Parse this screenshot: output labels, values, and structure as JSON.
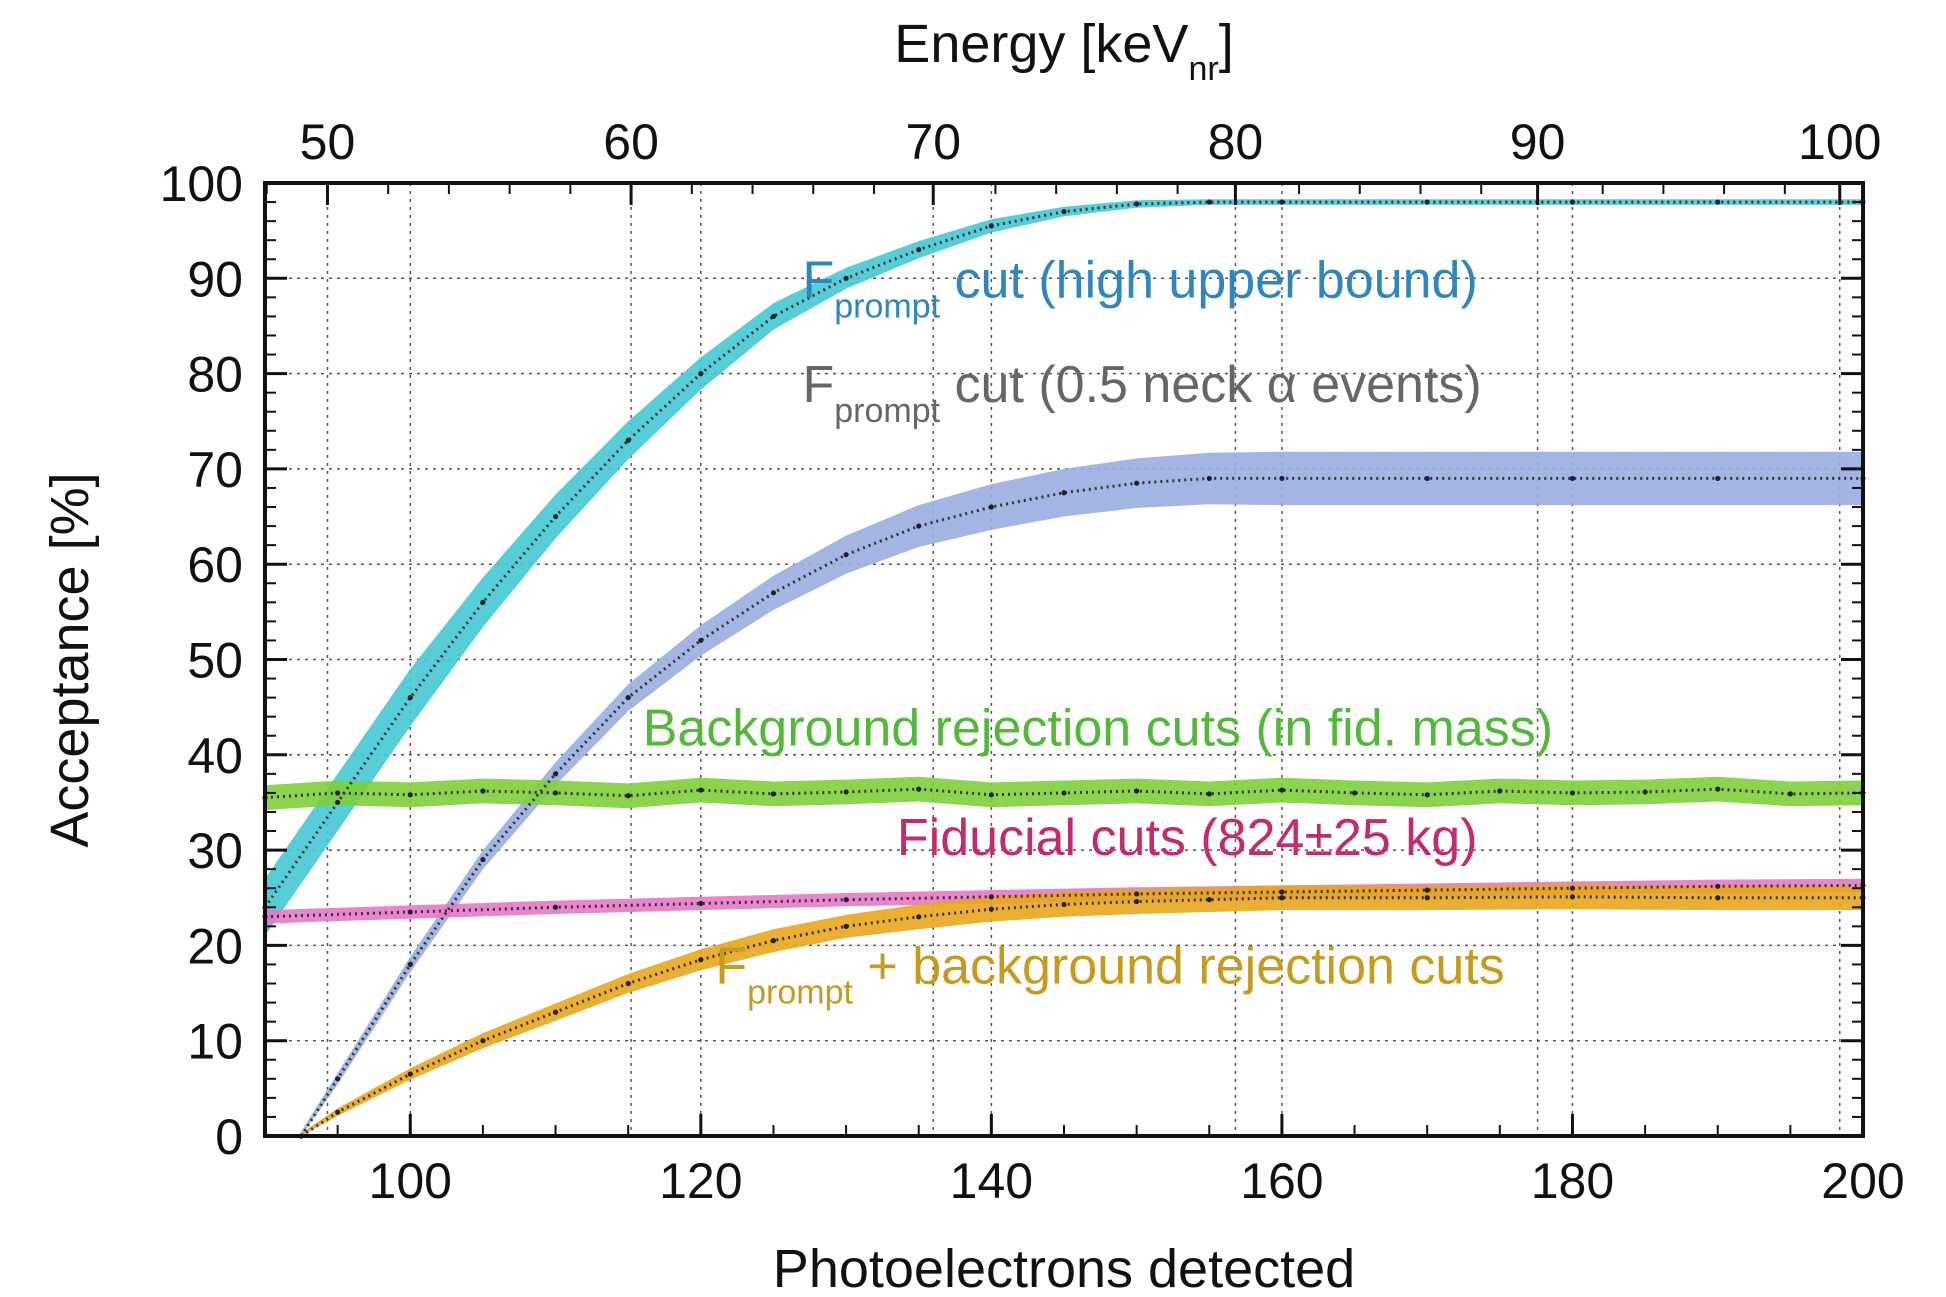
{
  "chart_data": {
    "type": "line",
    "xlabel": "Photoelectrons detected",
    "ylabel": "Acceptance [%]",
    "x2label_main": "Energy [keV",
    "x2label_sub": "nr",
    "x2label_end": "]",
    "xlim": [
      90,
      200
    ],
    "ylim": [
      0,
      100
    ],
    "x_ticks": [
      100,
      120,
      140,
      160,
      180,
      200
    ],
    "y_ticks": [
      0,
      10,
      20,
      30,
      40,
      50,
      60,
      70,
      80,
      90,
      100
    ],
    "x2_ticks": [
      {
        "label": "50",
        "at": 94.3
      },
      {
        "label": "60",
        "at": 115.2
      },
      {
        "label": "70",
        "at": 136.0
      },
      {
        "label": "80",
        "at": 156.8
      },
      {
        "label": "90",
        "at": 177.6
      },
      {
        "label": "100",
        "at": 198.4
      }
    ],
    "grid": true,
    "series": [
      {
        "color": "#45c8d4",
        "x": [
          90,
          95,
          100,
          105,
          110,
          115,
          120,
          125,
          130,
          135,
          140,
          145,
          150,
          155,
          160,
          170,
          180,
          190,
          200
        ],
        "y": [
          24,
          35,
          46,
          56,
          65,
          73,
          80,
          86,
          90,
          93,
          95.5,
          97,
          97.8,
          98,
          98,
          98,
          98,
          98,
          98
        ],
        "band": [
          3,
          3,
          3,
          2.6,
          2.3,
          2,
          1.7,
          1.4,
          1.1,
          0.9,
          0.7,
          0.5,
          0.4,
          0.3,
          0.3,
          0.3,
          0.3,
          0.3,
          0.3
        ]
      },
      {
        "color": "#99aee0",
        "x": [
          92.5,
          95,
          100,
          105,
          110,
          115,
          120,
          125,
          130,
          135,
          140,
          145,
          150,
          155,
          160,
          170,
          180,
          190,
          200
        ],
        "y": [
          0,
          6,
          18,
          29,
          38,
          46,
          52,
          57,
          61,
          64,
          66,
          67.5,
          68.5,
          69,
          69,
          69,
          69,
          69,
          69
        ],
        "band": [
          0.5,
          0.6,
          0.8,
          1,
          1.2,
          1.4,
          1.6,
          1.8,
          2,
          2.2,
          2.4,
          2.5,
          2.6,
          2.7,
          2.8,
          2.8,
          2.8,
          2.8,
          2.8
        ]
      },
      {
        "color": "#7ecf3a",
        "x": [
          90,
          95,
          100,
          105,
          110,
          115,
          120,
          125,
          130,
          135,
          140,
          145,
          150,
          155,
          160,
          165,
          170,
          175,
          180,
          185,
          190,
          195,
          200
        ],
        "y": [
          35.5,
          36,
          35.8,
          36.2,
          36,
          35.7,
          36.3,
          35.9,
          36.1,
          36.4,
          35.8,
          36,
          36.2,
          35.9,
          36.3,
          36,
          35.8,
          36.2,
          36,
          36.1,
          36.4,
          35.9,
          36
        ],
        "band": [
          1.3,
          1.3,
          1.3,
          1.3,
          1.3,
          1.3,
          1.3,
          1.3,
          1.3,
          1.3,
          1.3,
          1.3,
          1.3,
          1.3,
          1.3,
          1.3,
          1.3,
          1.3,
          1.3,
          1.3,
          1.3,
          1.3,
          1.3
        ]
      },
      {
        "color": "#e678c8",
        "x": [
          90,
          100,
          110,
          120,
          130,
          140,
          150,
          160,
          170,
          180,
          190,
          200
        ],
        "y": [
          23,
          23.5,
          24,
          24.4,
          24.8,
          25.1,
          25.4,
          25.6,
          25.8,
          26,
          26.2,
          26.3
        ],
        "band": [
          0.7,
          0.7,
          0.7,
          0.7,
          0.7,
          0.7,
          0.7,
          0.7,
          0.7,
          0.7,
          0.7,
          0.7
        ]
      },
      {
        "color": "#e8a61d",
        "x": [
          92.5,
          95,
          100,
          105,
          110,
          115,
          120,
          125,
          130,
          135,
          140,
          145,
          150,
          155,
          160,
          170,
          180,
          190,
          200
        ],
        "y": [
          0,
          2.5,
          6.5,
          10,
          13,
          16,
          18.5,
          20.5,
          22,
          23,
          23.8,
          24.3,
          24.6,
          24.8,
          25,
          25,
          25.1,
          25,
          25
        ],
        "band": [
          0.3,
          0.4,
          0.6,
          0.8,
          0.9,
          1,
          1.1,
          1.2,
          1.2,
          1.3,
          1.3,
          1.3,
          1.3,
          1.3,
          1.3,
          1.3,
          1.3,
          1.3,
          1.3
        ]
      }
    ],
    "annotations": [
      {
        "main": "F",
        "sub": "prompt",
        "rest": " cut (high upper bound)",
        "color": "#2f86bf",
        "anchor": [
          127,
          88
        ]
      },
      {
        "main": "F",
        "sub": "prompt",
        "rest": " cut (0.5 neck α events)",
        "color": "#666666",
        "anchor": [
          127,
          77
        ]
      },
      {
        "main": "Background rejection cuts (in fid. mass)",
        "color": "#53b83a",
        "anchor": [
          116,
          41
        ]
      },
      {
        "main": "Fiducial cuts (824±25 kg)",
        "color": "#c42a6e",
        "anchor": [
          133.5,
          29.5
        ]
      },
      {
        "main": "F",
        "sub": "prompt",
        "rest": " + background rejection cuts",
        "color": "#c59a1f",
        "anchor": [
          121,
          16
        ]
      }
    ]
  }
}
